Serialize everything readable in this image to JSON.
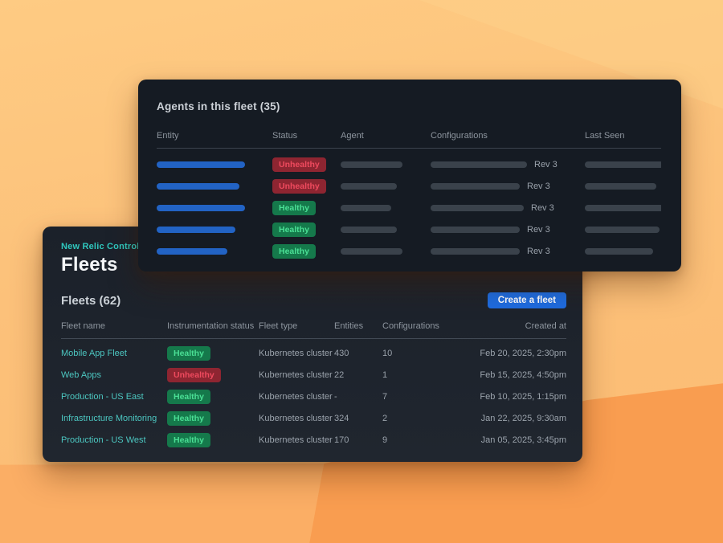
{
  "background": {
    "base": "#fcc17a",
    "band_mid": "#fbae65",
    "band_dark": "#f99d50"
  },
  "colors": {
    "accent_teal": "#2fc7bd",
    "link_teal": "#4cc6c0",
    "primary_button_blue": "#1d6ce0",
    "healthy_bg": "#15794b",
    "healthy_text": "#4adf95",
    "unhealthy_bg": "#8e2531",
    "unhealthy_text": "#ef4a5e",
    "skeleton_blue": "#2263c4",
    "skeleton_gray": "#3a424b"
  },
  "agents_panel": {
    "title": "Agents in this fleet (35)",
    "columns": [
      "Entity",
      "Status",
      "Agent",
      "Configurations",
      "Last Seen"
    ],
    "rows": [
      {
        "status": "Unhealthy",
        "revision": "Rev 3",
        "entity_bar_w": 110,
        "agent_bar_w": 77,
        "config_bar_w": 120,
        "last_seen_bar_w": 98
      },
      {
        "status": "Unhealthy",
        "revision": "Rev 3",
        "entity_bar_w": 103,
        "agent_bar_w": 70,
        "config_bar_w": 111,
        "last_seen_bar_w": 89
      },
      {
        "status": "Healthy",
        "revision": "Rev 3",
        "entity_bar_w": 110,
        "agent_bar_w": 63,
        "config_bar_w": 116,
        "last_seen_bar_w": 98
      },
      {
        "status": "Healthy",
        "revision": "Rev 3",
        "entity_bar_w": 98,
        "agent_bar_w": 70,
        "config_bar_w": 111,
        "last_seen_bar_w": 93
      },
      {
        "status": "Healthy",
        "revision": "Rev 3",
        "entity_bar_w": 88,
        "agent_bar_w": 77,
        "config_bar_w": 111,
        "last_seen_bar_w": 85
      }
    ]
  },
  "fleets_panel": {
    "breadcrumb": "New Relic Control",
    "title": "Fleets",
    "list_title": "Fleets (62)",
    "create_button_label": "Create a fleet",
    "columns": [
      "Fleet name",
      "Instrumentation status",
      "Fleet type",
      "Entities",
      "Configurations",
      "Created at"
    ],
    "rows": [
      {
        "name": "Mobile App Fleet",
        "status": "Healthy",
        "type": "Kubernetes cluster",
        "entities": "430",
        "configurations": "10",
        "created": "Feb 20, 2025, 2:30pm"
      },
      {
        "name": "Web Apps",
        "status": "Unhealthy",
        "type": "Kubernetes cluster",
        "entities": "22",
        "configurations": "1",
        "created": "Feb 15, 2025, 4:50pm"
      },
      {
        "name": "Production - US East",
        "status": "Healthy",
        "type": "Kubernetes cluster",
        "entities": "-",
        "configurations": "7",
        "created": "Feb 10, 2025, 1:15pm"
      },
      {
        "name": "Infrastructure Monitoring",
        "status": "Healthy",
        "type": "Kubernetes cluster",
        "entities": "324",
        "configurations": "2",
        "created": "Jan 22, 2025, 9:30am"
      },
      {
        "name": "Production - US West",
        "status": "Healthy",
        "type": "Kubernetes cluster",
        "entities": "170",
        "configurations": "9",
        "created": "Jan 05, 2025, 3:45pm"
      }
    ]
  }
}
